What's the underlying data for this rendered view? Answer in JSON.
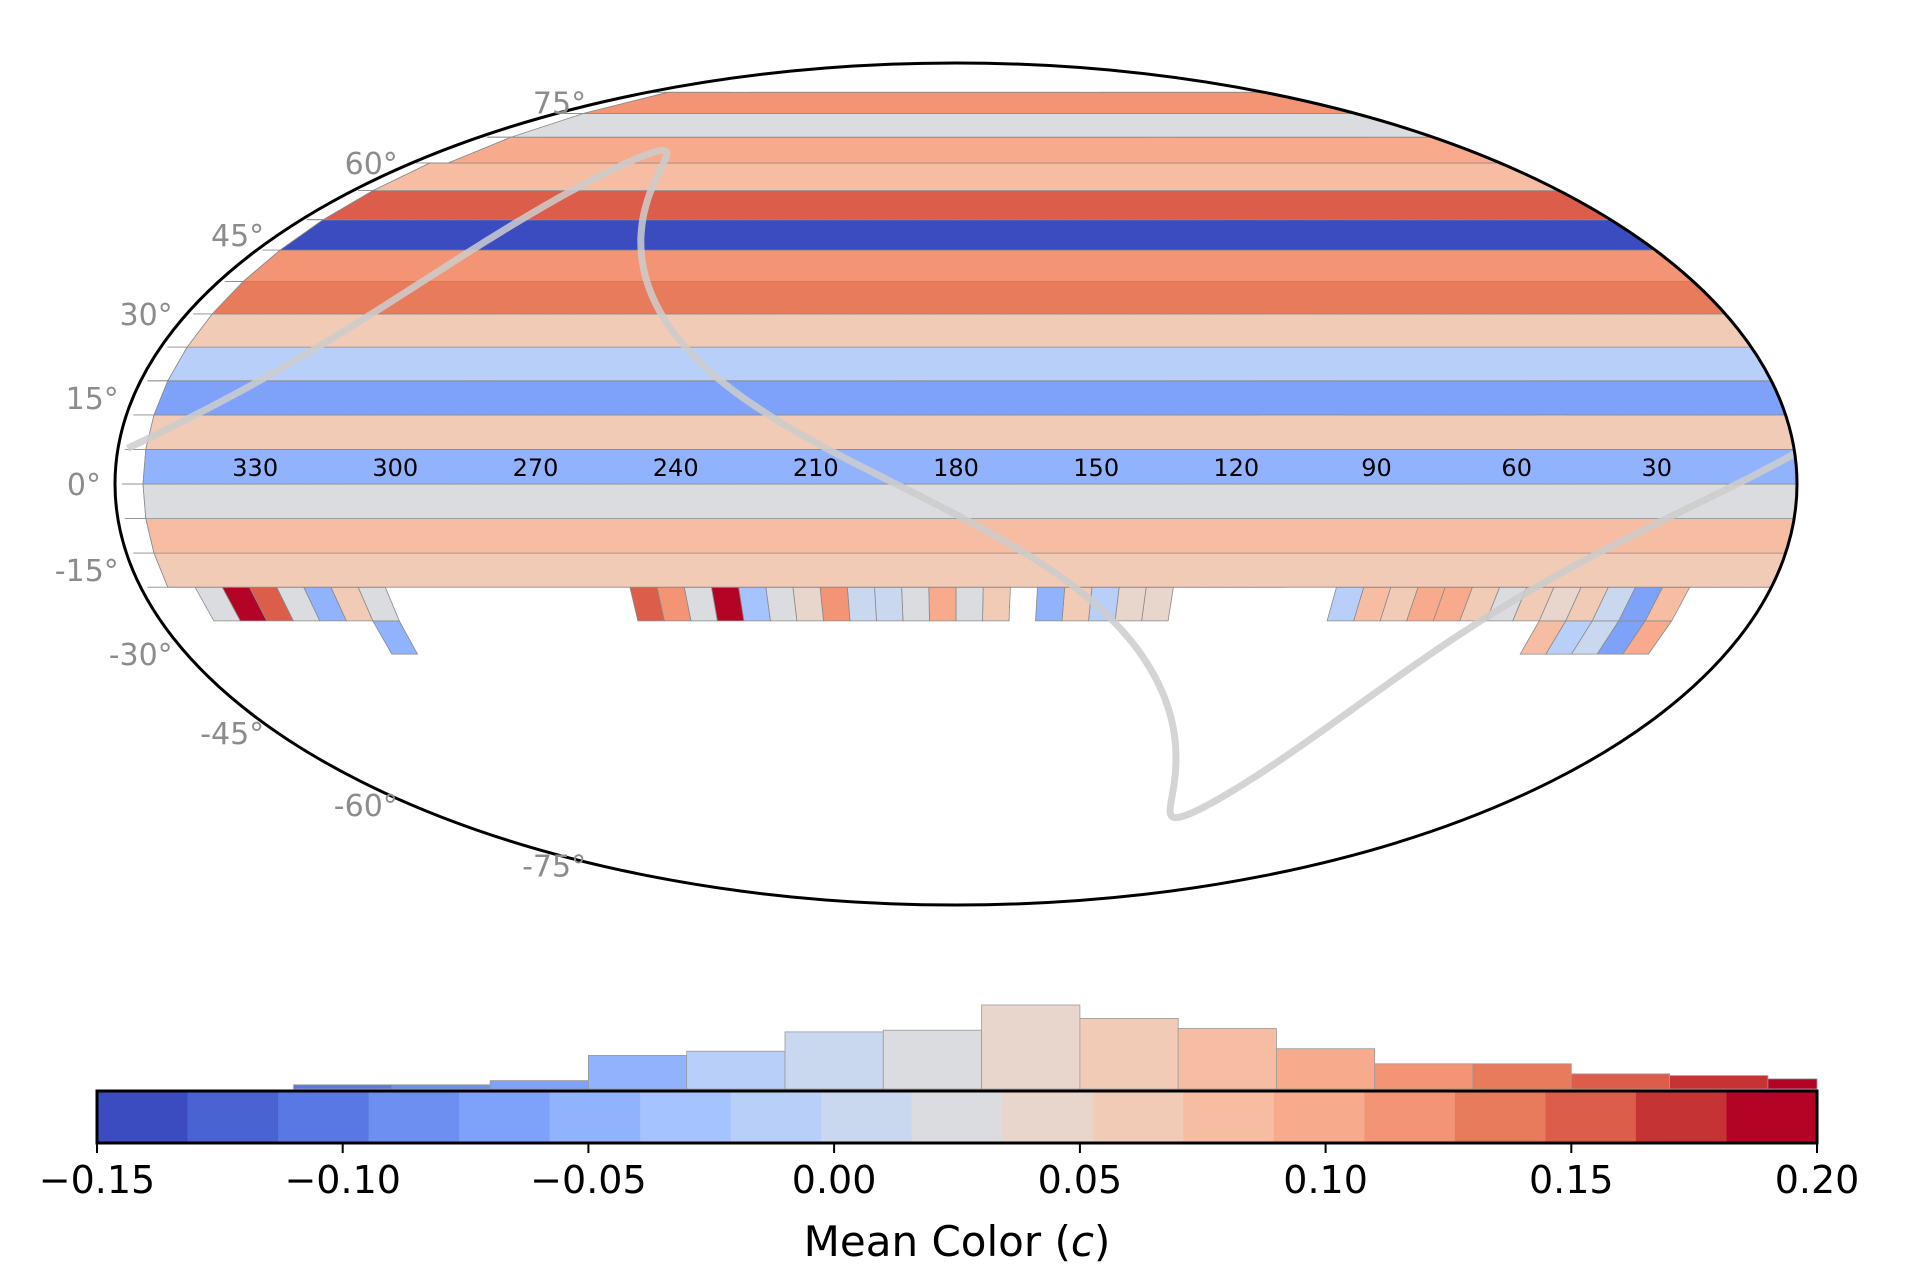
{
  "chart_data": [
    {
      "type": "heatmap",
      "projection": "mollweide",
      "title": "",
      "lat_tick_labels": [
        "75°",
        "60°",
        "45°",
        "30°",
        "15°",
        "0°",
        "-15°",
        "-30°",
        "-45°",
        "-60°",
        "-75°"
      ],
      "lat_ticks_deg": [
        75,
        60,
        45,
        30,
        15,
        0,
        -15,
        -30,
        -45,
        -60,
        -75
      ],
      "lon_tick_labels": [
        "330",
        "300",
        "270",
        "240",
        "210",
        "180",
        "150",
        "120",
        "90",
        "60",
        "30"
      ],
      "lon_ticks_deg": [
        330,
        300,
        270,
        240,
        210,
        180,
        150,
        120,
        90,
        60,
        30
      ],
      "lon_direction": "increasing-to-the-left",
      "grid": false,
      "overlay_curve": "galactic plane (grey curve)",
      "cells": {
        "lon_step_deg": 6,
        "lat_rows_deg": [
          -27,
          -21,
          -15,
          -9,
          -3,
          3,
          9,
          15,
          21,
          27,
          33,
          39,
          45,
          51,
          57,
          63,
          69,
          75
        ],
        "value_range": [
          -0.15,
          0.2
        ]
      }
    },
    {
      "type": "bar",
      "title": "",
      "xlabel": "Mean Color (c)",
      "xlabel_main": "Mean Color (",
      "xlabel_var": "c",
      "xlabel_close": ")",
      "colormap": "coolwarm",
      "xlim": [
        -0.15,
        0.2
      ],
      "bin_edges": [
        -0.15,
        -0.13,
        -0.11,
        -0.09,
        -0.07,
        -0.05,
        -0.03,
        -0.01,
        0.01,
        0.03,
        0.05,
        0.07,
        0.09,
        0.11,
        0.13,
        0.15,
        0.17,
        0.19,
        0.2
      ],
      "counts_relative": [
        0.0,
        0.0,
        0.05,
        0.05,
        0.1,
        0.4,
        0.45,
        0.68,
        0.7,
        1.0,
        0.84,
        0.72,
        0.48,
        0.3,
        0.3,
        0.18,
        0.16,
        0.12
      ],
      "tick_values": [
        -0.15,
        -0.1,
        -0.05,
        0.0,
        0.05,
        0.1,
        0.15,
        0.2
      ],
      "tick_labels": [
        "−0.15",
        "−0.10",
        "−0.05",
        "0.00",
        "0.05",
        "0.10",
        "0.15",
        "0.20"
      ],
      "colors": [
        "#3b4cc0",
        "#4a63d3",
        "#5a78e4",
        "#6c8ff1",
        "#7ea2f9",
        "#91b3fe",
        "#a5c3fe",
        "#b8d0f9",
        "#cad8ef",
        "#dadce0",
        "#e8d6cc",
        "#f2cbb7",
        "#f6bda2",
        "#f7aa8c",
        "#f39475",
        "#e97b5d",
        "#dc5d4a",
        "#c53334",
        "#b40426"
      ]
    }
  ]
}
